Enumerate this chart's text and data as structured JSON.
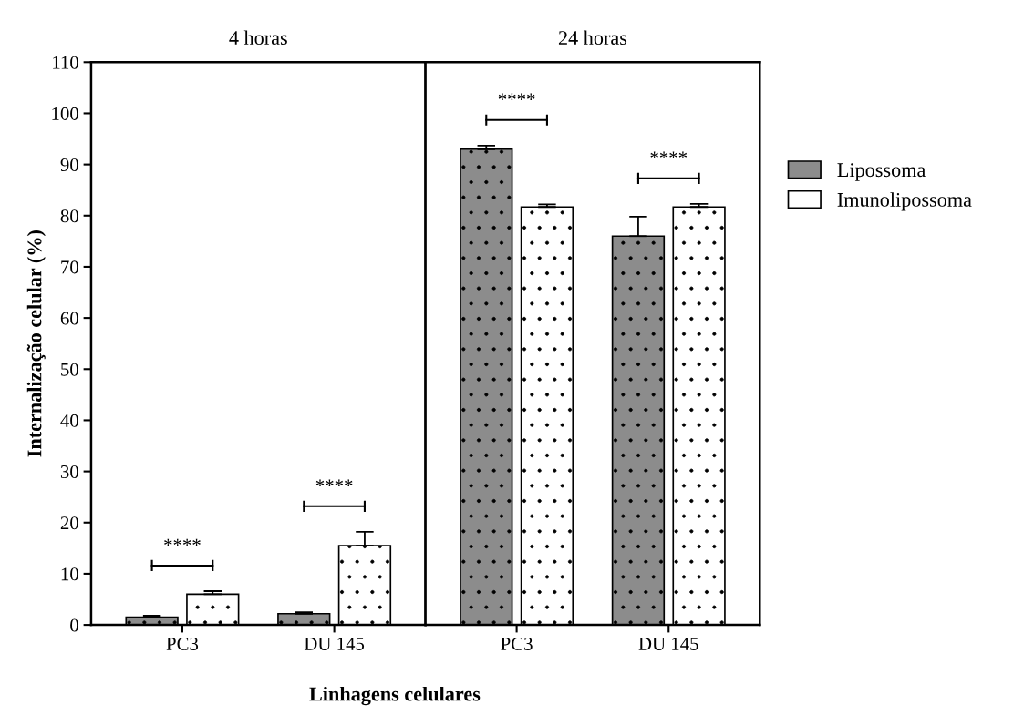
{
  "chart_data": [
    {
      "type": "bar",
      "title": "4 horas",
      "ylabel": "Internalização celular (%)",
      "xlabel": "Linhagens celulares",
      "categories": [
        "PC3",
        "DU 145"
      ],
      "ylim": [
        0,
        110
      ],
      "yticks": [
        0,
        10,
        20,
        30,
        40,
        50,
        60,
        70,
        80,
        90,
        100,
        110
      ],
      "grid": false,
      "legend": "right",
      "series": [
        {
          "name": "Lipossoma",
          "color": "#8c8c8c",
          "values": [
            1.5,
            2.2
          ],
          "errors": [
            [
              1.5,
              1.8
            ],
            [
              2.2,
              2.5
            ]
          ]
        },
        {
          "name": "Imunolipossoma",
          "color": "#ffffff",
          "values": [
            6.0,
            15.5
          ],
          "errors": [
            [
              6.0,
              6.6
            ],
            [
              15.5,
              18.2
            ]
          ]
        }
      ],
      "annotations": [
        "****",
        "****"
      ]
    },
    {
      "type": "bar",
      "title": "24 horas",
      "categories": [
        "PC3",
        "DU 145"
      ],
      "ylim": [
        0,
        110
      ],
      "tick_labels": "x",
      "grid": false,
      "series": [
        {
          "color": "#8c8c8c",
          "values": [
            93.0,
            76.0
          ],
          "errors": [
            [
              93.0,
              93.7
            ],
            [
              76.0,
              79.8
            ]
          ]
        },
        {
          "color": "#ffffff",
          "values": [
            81.7,
            81.7
          ],
          "errors": [
            [
              81.7,
              82.2
            ],
            [
              81.7,
              82.3
            ]
          ]
        }
      ],
      "annotations": [
        "****",
        "****"
      ]
    }
  ]
}
